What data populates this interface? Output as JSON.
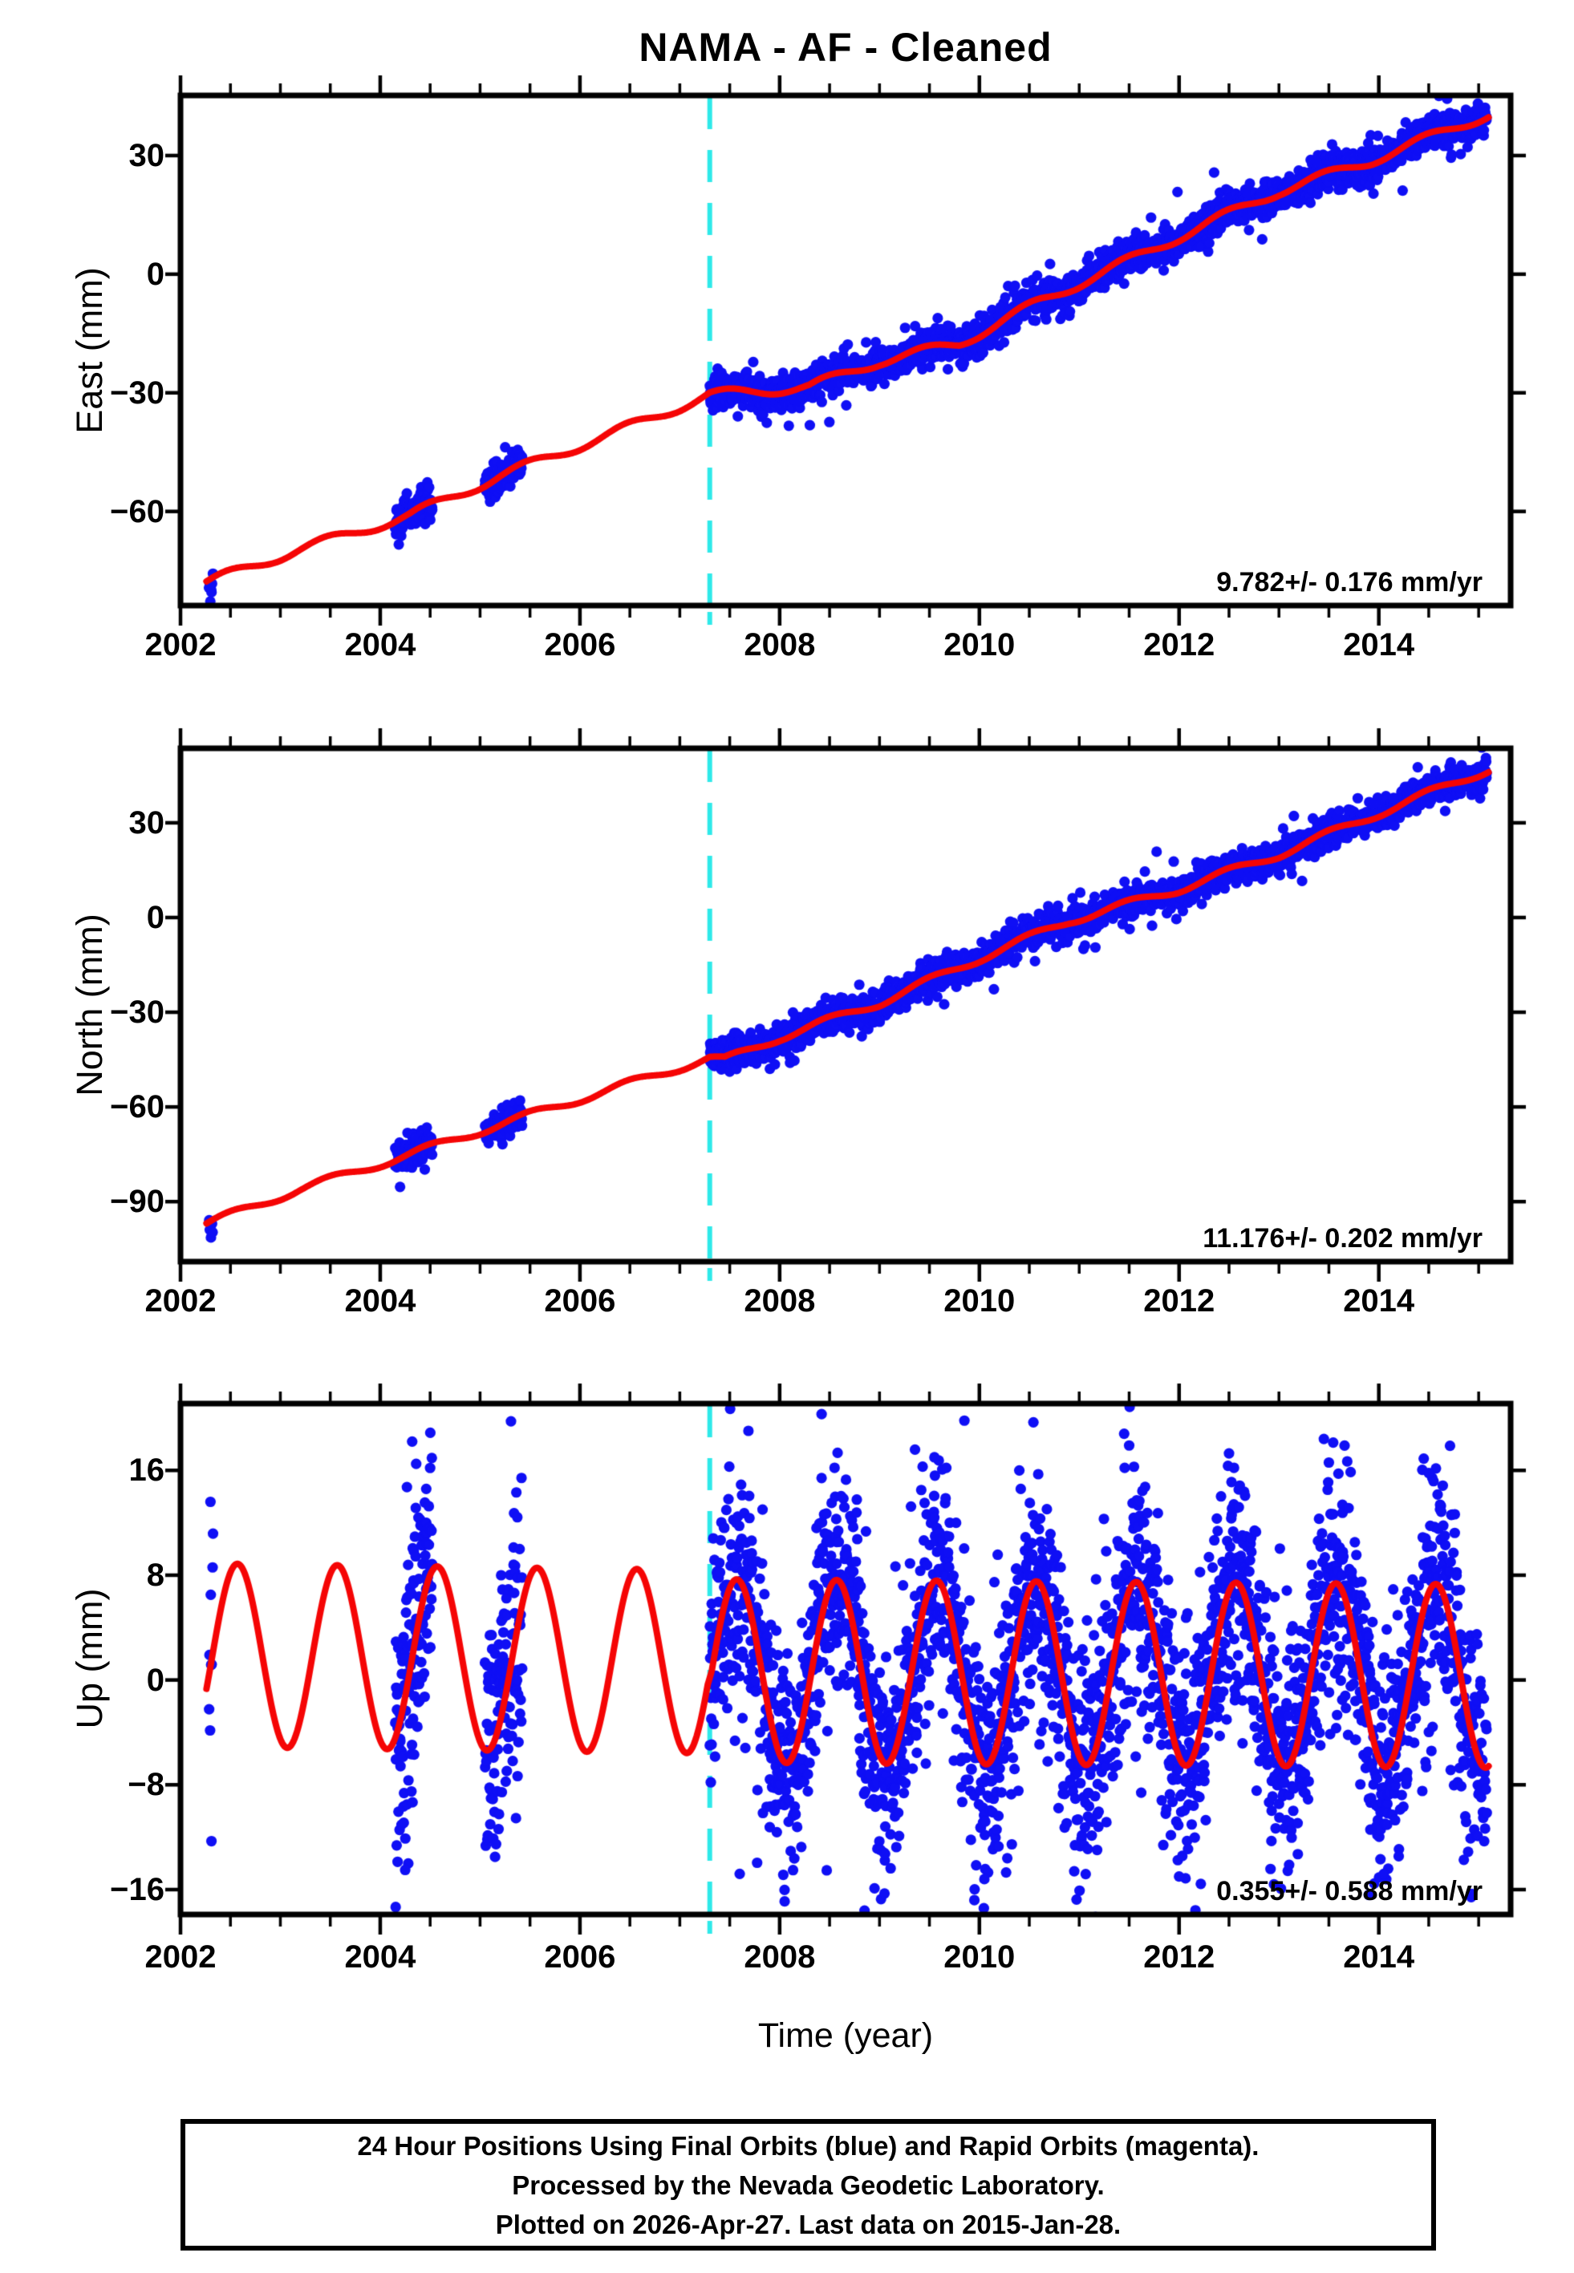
{
  "title": "NAMA  - AF - Cleaned",
  "colors": {
    "background": "#ffffff",
    "frame": "#000000",
    "text": "#000000",
    "final_orbit_points": "#0f0ff5",
    "model_fit_line": "#f50505",
    "event_line": "#2ee9e9"
  },
  "chart_data": {
    "type": "scatter",
    "title": "NAMA  - AF - Cleaned",
    "xlabel": "Time (year)",
    "x": {
      "lim": [
        2002.0,
        2015.32
      ],
      "major_ticks": [
        2002,
        2004,
        2006,
        2008,
        2010,
        2012,
        2014
      ],
      "major_tick_labels": [
        "2002",
        "2004",
        "2006",
        "2008",
        "2010",
        "2012",
        "2014"
      ],
      "minor_step": 0.5
    },
    "event_line": {
      "time": 2007.3,
      "style": "dashed",
      "color": "#2ee9e9"
    },
    "panels": [
      {
        "name": "east",
        "ylabel": "East (mm)",
        "ylim": [
          -83.8,
          45.2
        ],
        "yticks": [
          30,
          0,
          -30,
          -60
        ],
        "ytick_labels": [
          "30",
          "0",
          "−30",
          "−60"
        ],
        "rate_text": "9.782+/- 0.176 mm/yr",
        "fit": {
          "t_start": 2002.26,
          "t_end": 2015.1,
          "anchors": [
            [
              2002.26,
              -78
            ],
            [
              2003.2,
              -69.5
            ],
            [
              2004.3,
              -61
            ],
            [
              2005.2,
              -51
            ],
            [
              2006.3,
              -40.5
            ],
            [
              2007.3,
              -30.5
            ],
            [
              2008.3,
              -28.5
            ],
            [
              2009.0,
              -22
            ],
            [
              2009.8,
              -17.5
            ],
            [
              2010.6,
              -7
            ],
            [
              2011.5,
              3.5
            ],
            [
              2012.3,
              13
            ],
            [
              2013.0,
              21
            ],
            [
              2013.9,
              28.5
            ],
            [
              2015.1,
              40.5
            ]
          ],
          "seasonal_amplitude": 1.2,
          "seasonal_peak_frac": 0.47
        },
        "noise_sd_mm": 2.0,
        "segments": [
          {
            "t0": 2002.285,
            "t1": 2002.325,
            "n": 7,
            "sd_mult": 1.3,
            "bias": -1.5
          },
          {
            "t0": 2004.15,
            "t1": 2004.52,
            "n": 115,
            "sd_mult": 1.0,
            "bias": 0
          },
          {
            "t0": 2005.05,
            "t1": 2005.42,
            "n": 100,
            "sd_mult": 1.0,
            "bias": 0
          },
          {
            "t0": 2007.3,
            "t1": 2015.08,
            "n": 2600,
            "sd_mult": 1.0,
            "bias": 0
          }
        ],
        "outliers": []
      },
      {
        "name": "north",
        "ylabel": "North (mm)",
        "ylim": [
          -109.0,
          53.6
        ],
        "yticks": [
          30,
          0,
          -30,
          -60,
          -90
        ],
        "ytick_labels": [
          "30",
          "0",
          "−30",
          "−60",
          "−90"
        ],
        "rate_text": "11.176+/- 0.202 mm/yr",
        "fit": {
          "t_start": 2002.26,
          "t_end": 2015.1,
          "anchors": [
            [
              2002.26,
              -97
            ],
            [
              2003.2,
              -86
            ],
            [
              2004.3,
              -75
            ],
            [
              2005.2,
              -65.5
            ],
            [
              2006.3,
              -54.5
            ],
            [
              2007.3,
              -44.5
            ],
            [
              2007.45,
              -45.2
            ],
            [
              2008.0,
              -38
            ],
            [
              2009.0,
              -27
            ],
            [
              2010.0,
              -13
            ],
            [
              2010.9,
              -1
            ],
            [
              2012.0,
              9
            ],
            [
              2013.0,
              20
            ],
            [
              2014.0,
              33
            ],
            [
              2015.1,
              47
            ]
          ],
          "seasonal_amplitude": 1.2,
          "seasonal_peak_frac": 0.5
        },
        "noise_sd_mm": 2.2,
        "segments": [
          {
            "t0": 2002.285,
            "t1": 2002.325,
            "n": 5,
            "sd_mult": 1.8,
            "bias": -3
          },
          {
            "t0": 2004.15,
            "t1": 2004.52,
            "n": 115,
            "sd_mult": 1.0,
            "bias": 0
          },
          {
            "t0": 2005.05,
            "t1": 2005.42,
            "n": 100,
            "sd_mult": 1.0,
            "bias": 0
          },
          {
            "t0": 2007.3,
            "t1": 2015.08,
            "n": 2600,
            "sd_mult": 1.0,
            "bias": 0
          }
        ],
        "outliers": []
      },
      {
        "name": "up",
        "ylabel": "Up (mm)",
        "ylim": [
          -17.9,
          21.1
        ],
        "yticks": [
          16,
          8,
          0,
          -8,
          -16
        ],
        "ytick_labels": [
          "16",
          "8",
          "0",
          "−8",
          "−16"
        ],
        "rate_text": "0.355+/- 0.588 mm/yr",
        "fit": {
          "t_start": 2002.26,
          "t_end": 2015.1,
          "anchors": [
            [
              2002.26,
              1.9
            ],
            [
              2007.28,
              1.4
            ],
            [
              2007.32,
              0.7
            ],
            [
              2015.1,
              0.3
            ]
          ],
          "seasonal_amplitude": 7.0,
          "seasonal_peak_frac": 0.57
        },
        "noise_sd_mm": 4.3,
        "segments": [
          {
            "t0": 2002.285,
            "t1": 2002.325,
            "n": 8,
            "sd_mult": 1.2,
            "bias": 0
          },
          {
            "t0": 2004.15,
            "t1": 2004.52,
            "n": 150,
            "sd_mult": 1.3,
            "bias": 0
          },
          {
            "t0": 2005.05,
            "t1": 2005.42,
            "n": 130,
            "sd_mult": 1.25,
            "bias": 0
          },
          {
            "t0": 2007.3,
            "t1": 2015.08,
            "n": 2600,
            "sd_mult": 1.0,
            "bias": 0
          }
        ],
        "outliers": [
          [
            2002.3,
            13.6
          ],
          [
            2002.31,
            -12.3
          ],
          [
            2004.25,
            -14.5
          ],
          [
            2004.32,
            18.2
          ],
          [
            2004.36,
            16.5
          ],
          [
            2005.15,
            -13.5
          ],
          [
            2007.6,
            -14.8
          ],
          [
            2008.05,
            -16.9
          ],
          [
            2008.55,
            16.2
          ],
          [
            2008.85,
            -17.6
          ],
          [
            2008.95,
            -15.9
          ],
          [
            2009.05,
            -16.3
          ],
          [
            2009.55,
            17.0
          ],
          [
            2009.85,
            19.8
          ],
          [
            2009.95,
            -16.8
          ],
          [
            2010.05,
            -15.2
          ],
          [
            2010.4,
            16.0
          ],
          [
            2010.95,
            -14.6
          ],
          [
            2011.45,
            18.8
          ],
          [
            2011.5,
            17.9
          ],
          [
            2012.0,
            -15.0
          ],
          [
            2012.5,
            17.3
          ],
          [
            2012.55,
            16.2
          ],
          [
            2012.95,
            -15.6
          ],
          [
            2013.45,
            18.4
          ],
          [
            2013.5,
            16.6
          ],
          [
            2013.9,
            -16.4
          ],
          [
            2014.05,
            -14.8
          ],
          [
            2014.45,
            16.9
          ],
          [
            2014.5,
            15.8
          ]
        ]
      }
    ],
    "caption_lines": [
      "24 Hour Positions Using Final Orbits (blue) and Rapid Orbits (magenta).",
      "Processed by the Nevada Geodetic Laboratory.",
      "Plotted on 2026-Apr-27. Last data on 2015-Jan-28."
    ]
  }
}
